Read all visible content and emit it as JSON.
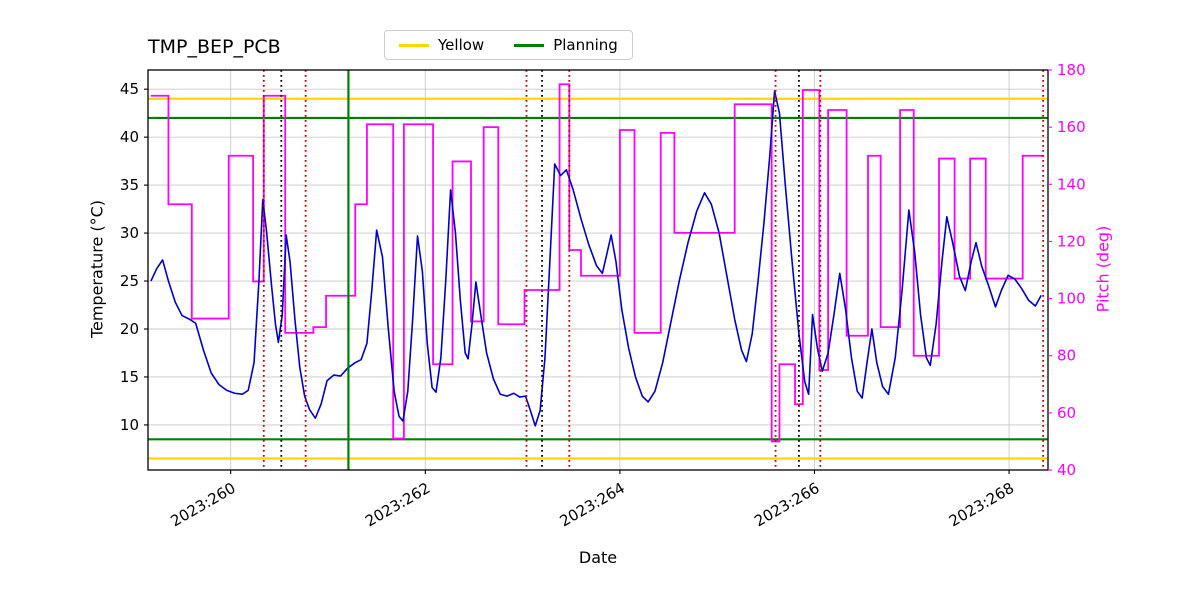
{
  "title": "TMP_BEP_PCB",
  "legend": {
    "items": [
      {
        "label": "Yellow",
        "color": "#ffd700"
      },
      {
        "label": "Planning",
        "color": "#008000"
      }
    ]
  },
  "axes": {
    "x": {
      "label": "Date",
      "ticks": [
        260,
        262,
        264,
        266,
        268
      ],
      "tick_labels": [
        "2023:260",
        "2023:262",
        "2023:264",
        "2023:266",
        "2023:268"
      ],
      "range": [
        259.15,
        268.4
      ]
    },
    "y_left": {
      "label": "Temperature (°C)",
      "ticks": [
        10,
        15,
        20,
        25,
        30,
        35,
        40,
        45
      ],
      "range": [
        5.3,
        47.0
      ],
      "color": "#000000"
    },
    "y_right": {
      "label": "Pitch (deg)",
      "ticks": [
        40,
        60,
        80,
        100,
        120,
        140,
        160,
        180
      ],
      "range": [
        40,
        180
      ],
      "color": "#ff00ff"
    }
  },
  "colors": {
    "temperature": "#0000cc",
    "pitch": "#ff00ff",
    "yellow_limit": "#ffd700",
    "planning_limit": "#008000",
    "event_red": "#c00000",
    "event_black": "#000000",
    "grid": "#c9c9c9",
    "frame": "#000000"
  },
  "chart_data": {
    "type": "line",
    "title": "TMP_BEP_PCB",
    "xlabel": "Date",
    "ylabel_left": "Temperature (°C)",
    "ylabel_right": "Pitch (deg)",
    "xlim": [
      259.15,
      268.4
    ],
    "ylim_left": [
      5.3,
      47.0
    ],
    "ylim_right": [
      40,
      180
    ],
    "grid": true,
    "legend_position": "upper center outside",
    "series": [
      {
        "name": "temperature",
        "axis": "left",
        "color": "#0000cc",
        "line": "solid",
        "width": 1.6,
        "x": [
          259.18,
          259.24,
          259.3,
          259.36,
          259.43,
          259.5,
          259.58,
          259.64,
          259.72,
          259.8,
          259.88,
          259.96,
          260.04,
          260.12,
          260.18,
          260.24,
          260.29,
          260.33,
          260.37,
          260.42,
          260.46,
          260.49,
          260.53,
          260.57,
          260.61,
          260.66,
          260.71,
          260.76,
          260.81,
          260.87,
          260.93,
          260.99,
          261.06,
          261.13,
          261.2,
          261.28,
          261.34,
          261.4,
          261.45,
          261.5,
          261.56,
          261.62,
          261.68,
          261.73,
          261.77,
          261.82,
          261.87,
          261.92,
          261.97,
          262.02,
          262.07,
          262.11,
          262.16,
          262.21,
          262.26,
          262.31,
          262.36,
          262.41,
          262.44,
          262.48,
          262.52,
          262.57,
          262.63,
          262.7,
          262.77,
          262.84,
          262.91,
          262.97,
          263.03,
          263.08,
          263.13,
          263.18,
          263.23,
          263.28,
          263.33,
          263.39,
          263.45,
          263.52,
          263.6,
          263.68,
          263.76,
          263.82,
          263.87,
          263.91,
          263.96,
          264.02,
          264.09,
          264.16,
          264.23,
          264.29,
          264.36,
          264.44,
          264.52,
          264.61,
          264.7,
          264.79,
          264.87,
          264.94,
          265.02,
          265.1,
          265.18,
          265.25,
          265.3,
          265.36,
          265.42,
          265.48,
          265.54,
          265.59,
          265.64,
          265.7,
          265.77,
          265.84,
          265.9,
          265.94,
          265.98,
          266.03,
          266.08,
          266.14,
          266.2,
          266.26,
          266.32,
          266.38,
          266.44,
          266.49,
          266.54,
          266.59,
          266.64,
          266.7,
          266.76,
          266.83,
          266.9,
          266.97,
          267.03,
          267.09,
          267.15,
          267.19,
          267.25,
          267.31,
          267.36,
          267.42,
          267.49,
          267.55,
          267.61,
          267.66,
          267.72,
          267.79,
          267.86,
          267.92,
          267.99,
          268.06,
          268.13,
          268.2,
          268.27,
          268.33
        ],
        "y": [
          25.0,
          26.3,
          27.2,
          25.0,
          22.8,
          21.4,
          21.0,
          20.6,
          17.8,
          15.4,
          14.2,
          13.6,
          13.3,
          13.2,
          13.6,
          16.5,
          25.0,
          33.5,
          30.0,
          24.5,
          20.5,
          18.6,
          21.5,
          29.8,
          27.0,
          21.0,
          16.0,
          13.0,
          11.6,
          10.7,
          12.2,
          14.6,
          15.2,
          15.1,
          15.9,
          16.5,
          16.8,
          18.5,
          24.0,
          30.3,
          27.5,
          20.0,
          13.5,
          10.9,
          10.4,
          13.5,
          21.0,
          29.7,
          26.0,
          18.5,
          13.9,
          13.4,
          17.0,
          25.0,
          34.5,
          30.0,
          23.0,
          17.5,
          16.9,
          20.5,
          24.9,
          21.5,
          17.5,
          14.8,
          13.2,
          13.0,
          13.3,
          12.9,
          13.0,
          11.5,
          9.9,
          11.5,
          17.0,
          27.0,
          37.2,
          36.0,
          36.6,
          34.5,
          31.5,
          28.8,
          26.6,
          25.8,
          28.0,
          29.8,
          27.0,
          22.0,
          18.0,
          15.0,
          13.0,
          12.4,
          13.5,
          16.5,
          20.5,
          25.0,
          29.0,
          32.3,
          34.2,
          33.0,
          30.0,
          25.5,
          21.0,
          17.8,
          16.6,
          19.5,
          25.0,
          31.0,
          38.0,
          44.8,
          42.5,
          35.0,
          27.0,
          19.5,
          14.5,
          13.2,
          21.5,
          18.0,
          15.6,
          17.5,
          21.5,
          25.8,
          22.0,
          17.0,
          13.5,
          12.8,
          16.5,
          20.0,
          16.5,
          14.0,
          13.2,
          17.0,
          24.0,
          32.4,
          28.0,
          21.5,
          17.0,
          16.2,
          20.5,
          27.0,
          31.7,
          29.0,
          25.5,
          24.0,
          27.0,
          29.0,
          26.5,
          24.5,
          22.3,
          24.0,
          25.6,
          25.2,
          24.2,
          23.0,
          22.4,
          23.5
        ]
      },
      {
        "name": "pitch",
        "axis": "right",
        "color": "#ff00ff",
        "line": "step-post",
        "width": 1.8,
        "x": [
          259.18,
          259.36,
          259.6,
          259.98,
          260.23,
          260.34,
          260.56,
          260.85,
          260.98,
          261.28,
          261.4,
          261.67,
          261.78,
          262.08,
          262.28,
          262.47,
          262.6,
          262.75,
          263.02,
          263.38,
          263.48,
          263.6,
          264.0,
          264.15,
          264.42,
          264.56,
          265.18,
          265.56,
          265.64,
          265.8,
          265.88,
          266.05,
          266.14,
          266.33,
          266.55,
          266.68,
          266.88,
          267.02,
          267.28,
          267.44,
          267.6,
          267.76,
          268.14,
          268.36
        ],
        "y": [
          171,
          133,
          93,
          150,
          106,
          171,
          88,
          90,
          101,
          133,
          161,
          51,
          161,
          77,
          148,
          92,
          160,
          91,
          103,
          175,
          117,
          108,
          159,
          88,
          158,
          123,
          168,
          50,
          77,
          63,
          173,
          75,
          166,
          87,
          150,
          90,
          166,
          80,
          149,
          107,
          149,
          107,
          150,
          150
        ]
      }
    ],
    "hlines": [
      {
        "name": "yellow-upper-limit",
        "y": 44.0,
        "color": "#ffd700",
        "style": "solid",
        "width": 2.2
      },
      {
        "name": "yellow-lower-limit",
        "y": 6.5,
        "color": "#ffd700",
        "style": "solid",
        "width": 2.2
      },
      {
        "name": "planning-upper-limit",
        "y": 42.0,
        "color": "#008000",
        "style": "solid",
        "width": 2.2
      },
      {
        "name": "planning-lower-limit",
        "y": 8.5,
        "color": "#008000",
        "style": "solid",
        "width": 2.2
      }
    ],
    "vlines": [
      {
        "name": "planning-event-line",
        "x": 261.21,
        "color": "#008000",
        "style": "solid",
        "width": 2.2
      },
      {
        "name": "red-event-line-1",
        "x": 260.34,
        "color": "#c00000",
        "style": "dotted",
        "width": 1.8
      },
      {
        "name": "black-event-line-1",
        "x": 260.52,
        "color": "#000000",
        "style": "dotted",
        "width": 1.8
      },
      {
        "name": "red-event-line-2",
        "x": 260.77,
        "color": "#c00000",
        "style": "dotted",
        "width": 1.8
      },
      {
        "name": "red-event-line-3",
        "x": 263.04,
        "color": "#c00000",
        "style": "dotted",
        "width": 1.8
      },
      {
        "name": "black-event-line-2",
        "x": 263.2,
        "color": "#000000",
        "style": "dotted",
        "width": 1.8
      },
      {
        "name": "red-event-line-4",
        "x": 263.48,
        "color": "#c00000",
        "style": "dotted",
        "width": 1.8
      },
      {
        "name": "red-event-line-5",
        "x": 265.6,
        "color": "#c00000",
        "style": "dotted",
        "width": 1.8
      },
      {
        "name": "black-event-line-3",
        "x": 265.84,
        "color": "#000000",
        "style": "dotted",
        "width": 1.8
      },
      {
        "name": "red-event-line-6",
        "x": 266.06,
        "color": "#c00000",
        "style": "dotted",
        "width": 1.8
      },
      {
        "name": "red-event-line-7",
        "x": 268.35,
        "color": "#c00000",
        "style": "dotted",
        "width": 1.8
      }
    ]
  }
}
